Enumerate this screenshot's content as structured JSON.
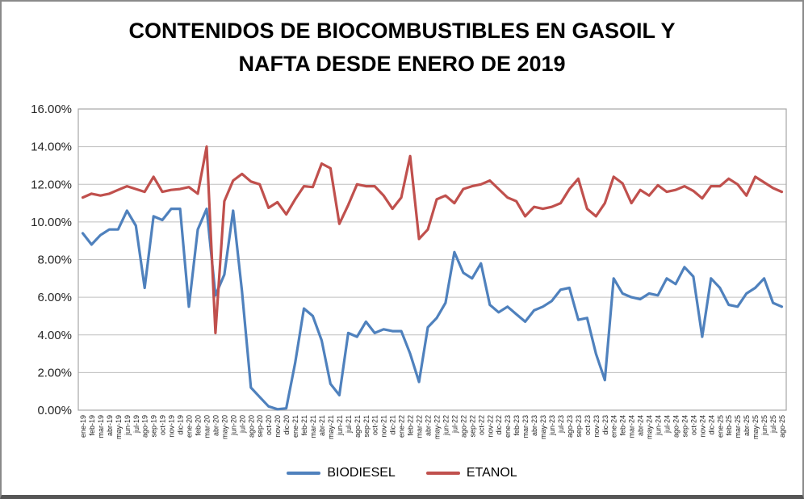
{
  "title": {
    "line1": "CONTENIDOS DE BIOCOMBUSTIBLES EN GASOIL Y",
    "line2": "NAFTA DESDE ENERO DE 2019"
  },
  "legend": {
    "items": [
      {
        "label": "BIODIESEL",
        "color": "#4F81BD"
      },
      {
        "label": "ETANOL",
        "color": "#C0504D"
      }
    ]
  },
  "chart_data": {
    "type": "line",
    "title": "CONTENIDOS DE BIOCOMBUSTIBLES EN GASOIL Y NAFTA DESDE ENERO DE 2019",
    "categories": [
      "ene-19",
      "feb-19",
      "mar-19",
      "abr-19",
      "may-19",
      "jun-19",
      "jul-19",
      "ago-19",
      "sep-19",
      "oct-19",
      "nov-19",
      "dic-19",
      "ene-20",
      "feb-20",
      "mar-20",
      "abr-20",
      "may-20",
      "jun-20",
      "jul-20",
      "ago-20",
      "sep-20",
      "oct-20",
      "nov-20",
      "dic-20",
      "ene-21",
      "feb-21",
      "mar-21",
      "abr-21",
      "may-21",
      "jun-21",
      "jul-21",
      "ago-21",
      "sep-21",
      "oct-21",
      "nov-21",
      "dic-21",
      "ene-22",
      "feb-22",
      "mar-22",
      "abr-22",
      "may-22",
      "jun-22",
      "jul-22",
      "ago-22",
      "sep-22",
      "oct-22",
      "nov-22",
      "dic-22",
      "ene-23",
      "feb-23",
      "mar-23",
      "abr-23",
      "may-23",
      "jun-23",
      "jul-23",
      "ago-23",
      "sep-23",
      "oct-23",
      "nov-23",
      "dic-23",
      "ene-24",
      "feb-24",
      "mar-24",
      "abr-24",
      "may-24",
      "jun-24",
      "jul-24",
      "ago-24",
      "sep-24",
      "oct-24",
      "nov-24",
      "dic-24",
      "ene-25",
      "feb-25",
      "mar-25",
      "abr-25",
      "may-25",
      "jun-25",
      "jul-25",
      "ago-25"
    ],
    "series": [
      {
        "name": "BIODIESEL",
        "color": "#4F81BD",
        "values": [
          9.4,
          8.8,
          9.3,
          9.6,
          9.6,
          10.6,
          9.8,
          6.5,
          10.3,
          10.1,
          10.7,
          10.7,
          5.5,
          9.6,
          10.7,
          6.1,
          7.2,
          10.6,
          6.3,
          1.2,
          0.7,
          0.2,
          0.05,
          0.1,
          2.5,
          5.4,
          5.0,
          3.7,
          1.4,
          0.8,
          4.1,
          3.9,
          4.7,
          4.1,
          4.3,
          4.2,
          4.2,
          3.0,
          1.5,
          4.4,
          4.9,
          5.7,
          8.4,
          7.3,
          7.0,
          7.8,
          5.6,
          5.2,
          5.5,
          5.1,
          4.7,
          5.3,
          5.5,
          5.8,
          6.4,
          6.5,
          4.8,
          4.9,
          3.0,
          1.6,
          7.0,
          6.2,
          6.0,
          5.9,
          6.2,
          6.1,
          7.0,
          6.7,
          7.6,
          7.1,
          3.9,
          7.0,
          6.5,
          5.6,
          5.5,
          6.2,
          6.5,
          7.0,
          5.7,
          5.5
        ]
      },
      {
        "name": "ETANOL",
        "color": "#C0504D",
        "values": [
          11.3,
          11.5,
          11.4,
          11.5,
          11.7,
          11.9,
          11.75,
          11.6,
          12.4,
          11.6,
          11.7,
          11.75,
          11.85,
          11.5,
          14.0,
          4.1,
          11.1,
          12.2,
          12.55,
          12.15,
          12.0,
          10.75,
          11.05,
          10.4,
          11.2,
          11.9,
          11.85,
          13.1,
          12.85,
          9.9,
          10.9,
          12.0,
          11.9,
          11.9,
          11.4,
          10.7,
          11.3,
          13.5,
          9.1,
          9.6,
          11.2,
          11.4,
          11.0,
          11.75,
          11.9,
          12.0,
          12.2,
          11.75,
          11.3,
          11.1,
          10.3,
          10.8,
          10.7,
          10.8,
          11.0,
          11.75,
          12.3,
          10.7,
          10.3,
          11.0,
          12.4,
          12.05,
          11.0,
          11.7,
          11.4,
          11.95,
          11.6,
          11.7,
          11.9,
          11.65,
          11.25,
          11.9,
          11.9,
          12.3,
          12.0,
          11.4,
          12.4,
          12.1,
          11.8,
          11.6
        ]
      }
    ],
    "ylim": [
      0,
      16
    ],
    "y_ticks": [
      "0.00%",
      "2.00%",
      "4.00%",
      "6.00%",
      "8.00%",
      "10.00%",
      "12.00%",
      "14.00%",
      "16.00%"
    ],
    "grid": true,
    "legend_position": "bottom",
    "x_label_rotation": -90
  },
  "styles": {
    "background": "#FFFFFF",
    "grid_color": "#BFBFBF",
    "plot_border_color": "#A6A6A6",
    "tick_label_color": "#262626",
    "frame_border_color": "#8A8A8A"
  }
}
